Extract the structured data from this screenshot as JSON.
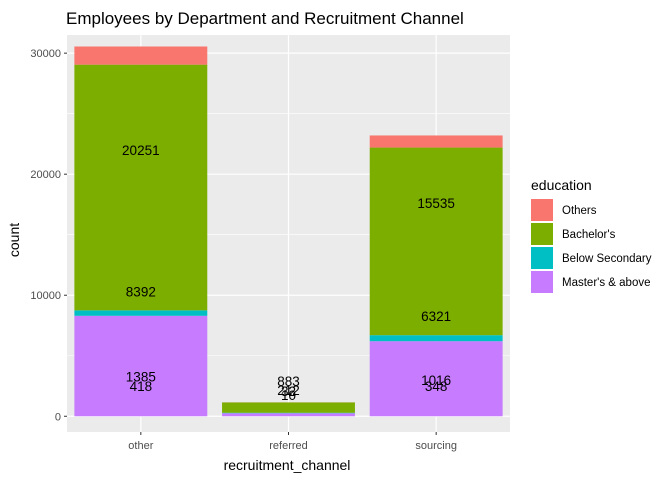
{
  "chart_data": {
    "type": "bar",
    "stacked": true,
    "title": "Employees by Department and Recruitment Channel",
    "xlabel": "recruitment_channel",
    "ylabel": "count",
    "categories": [
      "other",
      "referred",
      "sourcing"
    ],
    "ylim": [
      -1300,
      31500
    ],
    "yticks": [
      0,
      10000,
      20000,
      30000
    ],
    "ytick_labels": [
      "0",
      "10000",
      "20000",
      "30000"
    ],
    "grid": true,
    "legend": {
      "title": "education",
      "position": "right"
    },
    "series": [
      {
        "name": "Master's & above",
        "color": "#C77CFF",
        "values": [
          8300,
          250,
          6200
        ]
      },
      {
        "name": "Below Secondary",
        "color": "#00BFC4",
        "values": [
          450,
          40,
          500
        ]
      },
      {
        "name": "Bachelor's",
        "color": "#7CAE00",
        "values": [
          20300,
          850,
          15500
        ]
      },
      {
        "name": "Others",
        "color": "#F8766D",
        "values": [
          1500,
          10,
          1000
        ]
      }
    ],
    "annotations": [
      {
        "category": "other",
        "text": "20251",
        "y": 22000
      },
      {
        "category": "other",
        "text": "8392",
        "y": 10300
      },
      {
        "category": "other",
        "text": "1385",
        "y": 3300
      },
      {
        "category": "other",
        "text": "418",
        "y": 2500
      },
      {
        "category": "referred",
        "text": "883",
        "y": 2900
      },
      {
        "category": "referred",
        "text": "212",
        "y": 2150
      },
      {
        "category": "referred",
        "text": "32",
        "y": 2100
      },
      {
        "category": "referred",
        "text": "10",
        "y": 1750
      },
      {
        "category": "sourcing",
        "text": "15535",
        "y": 17600
      },
      {
        "category": "sourcing",
        "text": "6321",
        "y": 8300
      },
      {
        "category": "sourcing",
        "text": "1016",
        "y": 3000
      },
      {
        "category": "sourcing",
        "text": "348",
        "y": 2500
      }
    ]
  }
}
